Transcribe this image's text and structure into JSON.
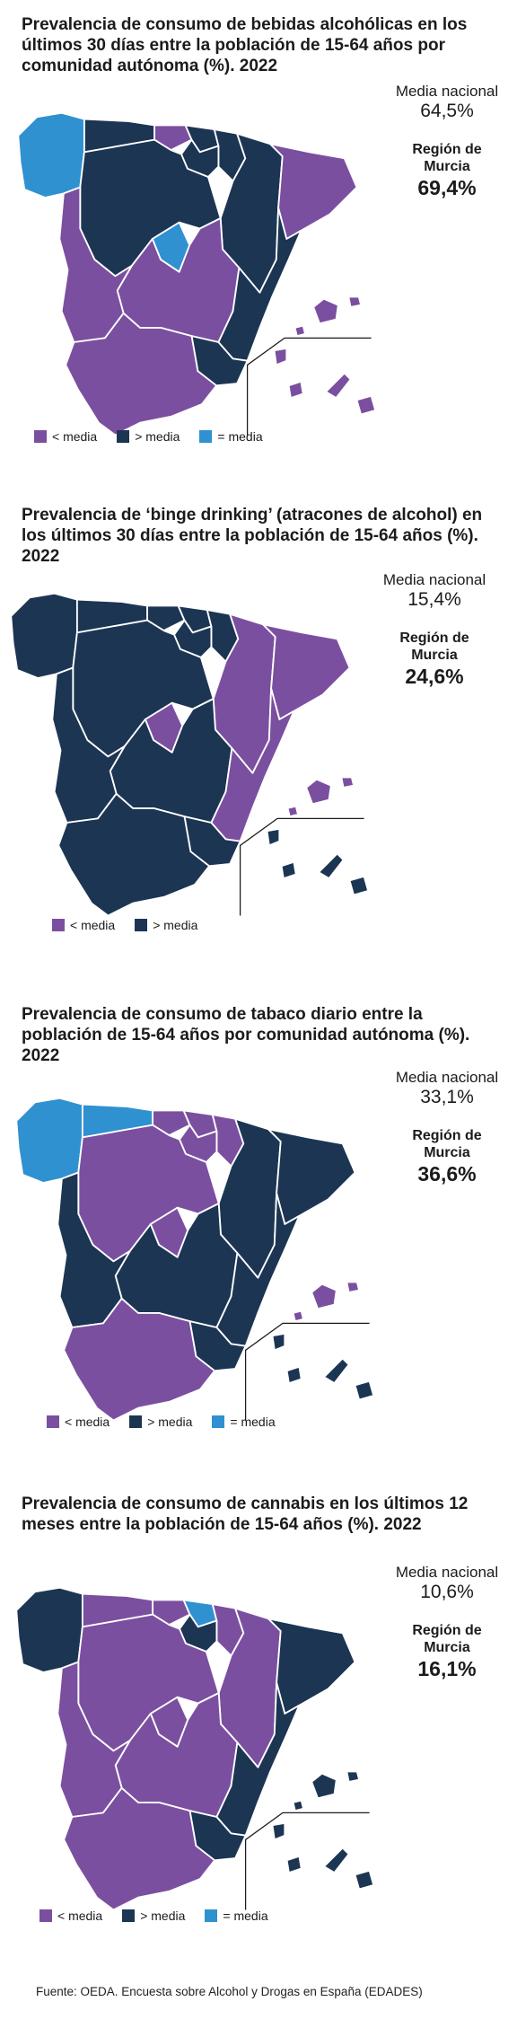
{
  "colors": {
    "below": "#7b4fa0",
    "above": "#1c3553",
    "equal": "#2f91d0"
  },
  "maps": [
    {
      "title": "Prevalencia de consumo de bebidas alcohólicas en los últimos 30 días entre la población de 15-64 años por comunidad autónoma (%). 2022",
      "media_label": "Media nacional",
      "media_value": "64,5%",
      "region_label": "Región de Murcia",
      "region_value": "69,4%",
      "regions": {
        "galicia": "equal",
        "asturias": "above",
        "cantabria": "below",
        "paisvasco": "above",
        "navarra": "above",
        "rioja": "above",
        "aragon": "above",
        "cataluna": "below",
        "castillaleon": "above",
        "madrid": "equal",
        "castillalamancha": "below",
        "extremadura": "below",
        "valencia": "above",
        "murcia": "above",
        "andalucia": "below",
        "baleares": "below",
        "canarias": "below"
      },
      "legend": [
        {
          "key": "below",
          "label": "< media"
        },
        {
          "key": "above",
          "label": "> media"
        },
        {
          "key": "equal",
          "label": "= media"
        }
      ]
    },
    {
      "title": "Prevalencia de ‘binge drinking’ (atracones de alcohol) en los últimos 30 días entre la población de 15-64 años (%). 2022",
      "media_label": "Media nacional",
      "media_value": "15,4%",
      "region_label": "Región de Murcia",
      "region_value": "24,6%",
      "regions": {
        "galicia": "above",
        "asturias": "above",
        "cantabria": "above",
        "paisvasco": "above",
        "navarra": "above",
        "rioja": "above",
        "aragon": "below",
        "cataluna": "below",
        "castillaleon": "above",
        "madrid": "below",
        "castillalamancha": "above",
        "extremadura": "above",
        "valencia": "below",
        "murcia": "above",
        "andalucia": "above",
        "baleares": "below",
        "canarias": "above"
      },
      "legend": [
        {
          "key": "below",
          "label": "< media"
        },
        {
          "key": "above",
          "label": "> media"
        }
      ]
    },
    {
      "title": "Prevalencia de consumo de tabaco diario entre la población de 15-64 años por comunidad autónoma (%). 2022",
      "media_label": "Media nacional",
      "media_value": "33,1%",
      "region_label": "Región de Murcia",
      "region_value": "36,6%",
      "regions": {
        "galicia": "equal",
        "asturias": "equal",
        "cantabria": "below",
        "paisvasco": "below",
        "navarra": "below",
        "rioja": "below",
        "aragon": "above",
        "cataluna": "above",
        "castillaleon": "below",
        "madrid": "below",
        "castillalamancha": "above",
        "extremadura": "above",
        "valencia": "above",
        "murcia": "above",
        "andalucia": "below",
        "baleares": "below",
        "canarias": "above"
      },
      "legend": [
        {
          "key": "below",
          "label": "< media"
        },
        {
          "key": "above",
          "label": "> media"
        },
        {
          "key": "equal",
          "label": "= media"
        }
      ]
    },
    {
      "title": "Prevalencia de consumo de cannabis en los últimos 12 meses entre la población de 15-64 años (%). 2022",
      "media_label": "Media nacional",
      "media_value": "10,6%",
      "region_label": "Región de Murcia",
      "region_value": "16,1%",
      "regions": {
        "galicia": "above",
        "asturias": "below",
        "cantabria": "below",
        "paisvasco": "equal",
        "navarra": "below",
        "rioja": "above",
        "aragon": "below",
        "cataluna": "above",
        "castillaleon": "below",
        "madrid": "below",
        "castillalamancha": "below",
        "extremadura": "below",
        "valencia": "above",
        "murcia": "above",
        "andalucia": "below",
        "baleares": "above",
        "canarias": "above"
      },
      "legend": [
        {
          "key": "below",
          "label": "< media"
        },
        {
          "key": "above",
          "label": "> media"
        },
        {
          "key": "equal",
          "label": "= media"
        }
      ]
    }
  ],
  "source": "Fuente: OEDA. Encuesta sobre Alcohol y Drogas en España (EDADES)"
}
